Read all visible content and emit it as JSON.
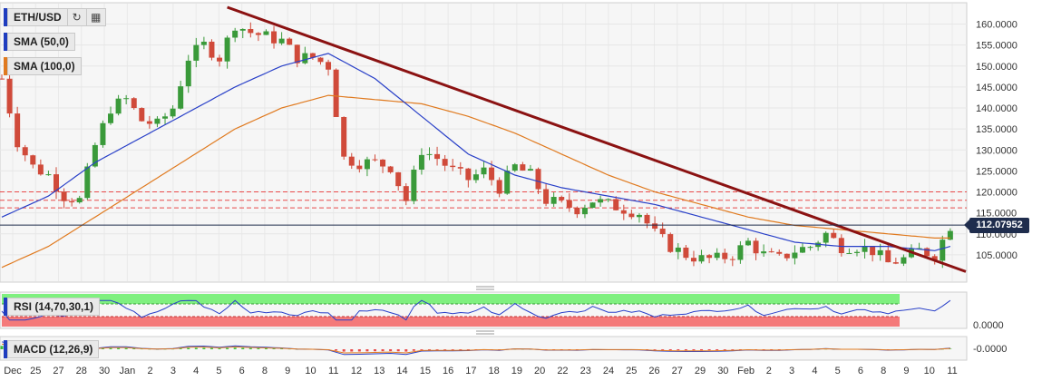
{
  "header": {
    "symbol": "ETH/USD",
    "reload_icon": "refresh-icon",
    "bars_icon": "bar-style-icon"
  },
  "indicators": {
    "sma50": {
      "label": "SMA (50,0)",
      "color": "#1f3dbf"
    },
    "sma100": {
      "label": "SMA (100,0)",
      "color": "#e07a1f"
    },
    "rsi": {
      "label": "RSI (14,70,30,1)",
      "value_label": "0.0000"
    },
    "macd": {
      "label": "MACD (12,26,9)",
      "value_label": "-0.0000"
    }
  },
  "current_price": "112.07952",
  "colors": {
    "up": "#3a9a3a",
    "down": "#d04a3a",
    "trendline": "#8b1212",
    "sma50": "#2940c8",
    "sma100": "#e07a1f",
    "resistance": "#e84a4a",
    "price_line": "#1f2d4d",
    "rsi_overbought": "#7ff07f",
    "rsi_oversold": "#f47a7a"
  },
  "chart_data": {
    "type": "candlestick",
    "symbol": "ETH/USD",
    "y_tick_labels": [
      "160.0000",
      "155.0000",
      "150.0000",
      "145.0000",
      "140.0000",
      "135.0000",
      "130.0000",
      "125.0000",
      "120.0000",
      "115.0000",
      "110.0000",
      "105.0000"
    ],
    "ylim": [
      100,
      164
    ],
    "x_tick_labels": [
      "Dec",
      "25",
      "27",
      "28",
      "30",
      "Jan",
      "2",
      "3",
      "4",
      "5",
      "6",
      "8",
      "9",
      "10",
      "11",
      "12",
      "13",
      "14",
      "15",
      "16",
      "17",
      "18",
      "19",
      "20",
      "22",
      "23",
      "24",
      "25",
      "26",
      "27",
      "29",
      "30",
      "Feb",
      "2",
      "3",
      "4",
      "5",
      "6",
      "8",
      "9",
      "10",
      "11"
    ],
    "close_path": [
      [
        0,
        147
      ],
      [
        2,
        132
      ],
      [
        4,
        126
      ],
      [
        6,
        124
      ],
      [
        8,
        119
      ],
      [
        10,
        118
      ],
      [
        12,
        131
      ],
      [
        14,
        140
      ],
      [
        16,
        142
      ],
      [
        18,
        137
      ],
      [
        20,
        136
      ],
      [
        22,
        140
      ],
      [
        24,
        152
      ],
      [
        26,
        155
      ],
      [
        28,
        152
      ],
      [
        30,
        160
      ],
      [
        32,
        158
      ],
      [
        34,
        157
      ],
      [
        36,
        156
      ],
      [
        38,
        152
      ],
      [
        40,
        152
      ],
      [
        42,
        150
      ],
      [
        44,
        128
      ],
      [
        46,
        127
      ],
      [
        48,
        127
      ],
      [
        50,
        126
      ],
      [
        52,
        118
      ],
      [
        54,
        130
      ],
      [
        56,
        128
      ],
      [
        58,
        125
      ],
      [
        60,
        123
      ],
      [
        62,
        125
      ],
      [
        64,
        121
      ],
      [
        66,
        126
      ],
      [
        68,
        124
      ],
      [
        70,
        118
      ],
      [
        72,
        117
      ],
      [
        74,
        116
      ],
      [
        76,
        118
      ],
      [
        78,
        117
      ],
      [
        80,
        116
      ],
      [
        82,
        115
      ],
      [
        84,
        110
      ],
      [
        86,
        107
      ],
      [
        88,
        105
      ],
      [
        90,
        104
      ],
      [
        92,
        104
      ],
      [
        94,
        105
      ],
      [
        96,
        108
      ],
      [
        98,
        105
      ],
      [
        100,
        104
      ],
      [
        102,
        106
      ],
      [
        104,
        107
      ],
      [
        106,
        110
      ],
      [
        108,
        107
      ],
      [
        110,
        107
      ],
      [
        112,
        106
      ],
      [
        114,
        103
      ],
      [
        116,
        104
      ],
      [
        118,
        106
      ],
      [
        120,
        105
      ],
      [
        122,
        112
      ]
    ],
    "sma50_path": [
      [
        0,
        114
      ],
      [
        6,
        119
      ],
      [
        12,
        127
      ],
      [
        18,
        133
      ],
      [
        24,
        139
      ],
      [
        30,
        145
      ],
      [
        36,
        150
      ],
      [
        42,
        153
      ],
      [
        48,
        147
      ],
      [
        54,
        138
      ],
      [
        60,
        129
      ],
      [
        66,
        124
      ],
      [
        72,
        121
      ],
      [
        78,
        119
      ],
      [
        84,
        117
      ],
      [
        90,
        114
      ],
      [
        96,
        111
      ],
      [
        102,
        108
      ],
      [
        108,
        107
      ],
      [
        114,
        107
      ],
      [
        120,
        106
      ],
      [
        122,
        107
      ]
    ],
    "sma100_path": [
      [
        0,
        102
      ],
      [
        6,
        107
      ],
      [
        12,
        114
      ],
      [
        18,
        121
      ],
      [
        24,
        128
      ],
      [
        30,
        135
      ],
      [
        36,
        140
      ],
      [
        42,
        143
      ],
      [
        48,
        142
      ],
      [
        54,
        141
      ],
      [
        60,
        138
      ],
      [
        66,
        134
      ],
      [
        72,
        129
      ],
      [
        78,
        124
      ],
      [
        84,
        120
      ],
      [
        90,
        117
      ],
      [
        96,
        114
      ],
      [
        102,
        112
      ],
      [
        108,
        111
      ],
      [
        114,
        110
      ],
      [
        120,
        109
      ],
      [
        122,
        109
      ]
    ],
    "trendline": [
      [
        29,
        164
      ],
      [
        124,
        101
      ]
    ],
    "resistance_levels": [
      120,
      118,
      116.2
    ],
    "current_price": 112.07952,
    "rsi": {
      "overbought": 70,
      "oversold": 30
    }
  }
}
